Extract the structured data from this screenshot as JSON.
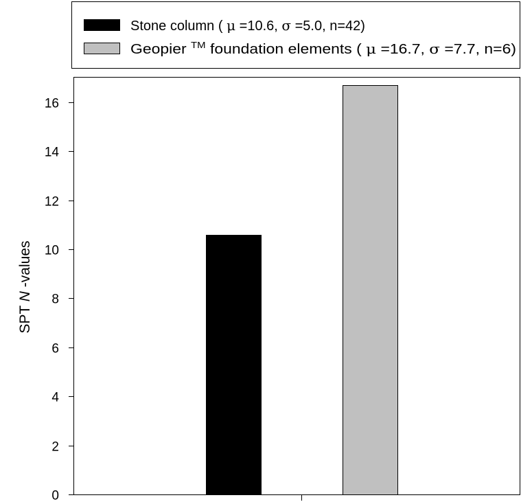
{
  "chart_data": {
    "type": "bar",
    "title": "",
    "xlabel": "",
    "ylabel": {
      "prefix": "SPT ",
      "italic": "N",
      "suffix": "-values"
    },
    "ylim": [
      0,
      17
    ],
    "yticks": [
      0,
      2,
      4,
      6,
      8,
      10,
      12,
      14,
      16
    ],
    "grid": false,
    "legend_position": "top",
    "series": [
      {
        "value": 10.6,
        "color": "#000000",
        "legend": {
          "name": "Stone column",
          "stats": [
            {
              "sym": "μ",
              "rest": "=10.6, "
            },
            {
              "sym": "σ",
              "rest": " =5.0, n=42)"
            }
          ]
        }
      },
      {
        "value": 16.7,
        "color": "#c0c0c0",
        "legend": {
          "name": "Geopier",
          "superscript": "TM",
          "name_suffix": " foundation elements",
          "stats": [
            {
              "sym": "μ",
              "rest": "=16.7, "
            },
            {
              "sym": "σ",
              "rest": "=7.7, n=6)"
            }
          ]
        }
      }
    ]
  }
}
